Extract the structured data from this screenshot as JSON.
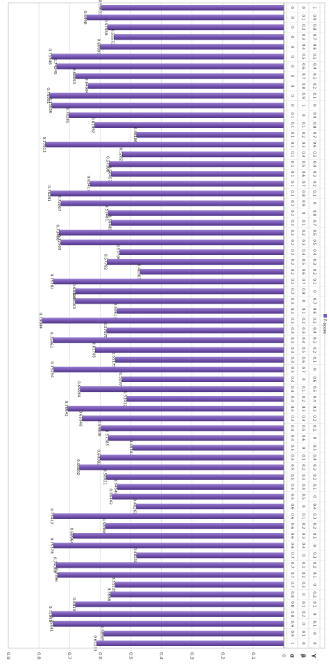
{
  "chart_data": {
    "type": "bar",
    "orientation": "horizontal",
    "rotated_90_degrees": true,
    "title": "",
    "xlabel": "",
    "ylabel": "",
    "ylim": [
      0,
      0.9
    ],
    "y_ticks": [
      "0",
      "0.1",
      "0.2",
      "0.3",
      "0.4",
      "0.5",
      "0.6",
      "0.7",
      "0.8",
      "0.9"
    ],
    "grid": true,
    "legend": {
      "position": "right",
      "entries": [
        "F-score"
      ]
    },
    "bar_color": "#7b5bb5",
    "table_row_labels": [
      "α",
      "β",
      "γ"
    ],
    "series": [
      {
        "name": "F-score",
        "values": [
          0.59633,
          0.6448,
          0.57658,
          0.55573,
          0.60099,
          0.75946,
          0.74249,
          0.68093,
          0.64004,
          0.76561,
          0.75856,
          0.70285,
          0.61892,
          0.48186,
          0.77913,
          0.5282,
          0.57088,
          0.56457,
          0.63417,
          0.76281,
          0.72867,
          0.57481,
          0.56489,
          0.73466,
          0.72909,
          0.53706,
          0.57782,
          0.46903,
          0.75381,
          0.68093,
          0.68163,
          0.54613,
          0.79004,
          0.57875,
          0.75461,
          0.61705,
          0.55175,
          0.75254,
          0.5297,
          0.66584,
          0.51412,
          0.70642,
          0.65946,
          0.59808,
          0.57385,
          0.49507,
          0.60082,
          0.66802,
          0.58021,
          0.54549,
          0.56142,
          0.48261,
          0.75412,
          0.58366,
          0.68964,
          0.75378,
          0.48158,
          0.74388,
          0.7396,
          0.55228,
          0.5666,
          0.6813,
          0.75818,
          0.75441,
          0.58905,
          0.61233
        ]
      }
    ],
    "table_rows": [
      [
        "0",
        "0",
        "1"
      ],
      [
        "0",
        "0.1",
        "0.9"
      ],
      [
        "0",
        "0.2",
        "0.8"
      ],
      [
        "0",
        "0.3",
        "0.7"
      ],
      [
        "0",
        "0.4",
        "0.6"
      ],
      [
        "0",
        "0.5",
        "0.5"
      ],
      [
        "0",
        "0.6",
        "0.4"
      ],
      [
        "0",
        "0.7",
        "0.3"
      ],
      [
        "0",
        "0.8",
        "0.2"
      ],
      [
        "0",
        "0.9",
        "0.1"
      ],
      [
        "0",
        "1",
        "0"
      ],
      [
        "0.1",
        "0",
        "0.9"
      ],
      [
        "0.1",
        "0.1",
        "0.8"
      ],
      [
        "0.1",
        "0.2",
        "0.7"
      ],
      [
        "0.1",
        "0.3",
        "0.6"
      ],
      [
        "0.1",
        "0.4",
        "0.5"
      ],
      [
        "0.1",
        "0.5",
        "0.4"
      ],
      [
        "0.1",
        "0.6",
        "0.3"
      ],
      [
        "0.1",
        "0.7",
        "0.2"
      ],
      [
        "0.1",
        "0.8",
        "0.1"
      ],
      [
        "0.1",
        "0.9",
        "0"
      ],
      [
        "0.2",
        "0",
        "0.8"
      ],
      [
        "0.2",
        "0.1",
        "0.7"
      ],
      [
        "0.2",
        "0.2",
        "0.6"
      ],
      [
        "0.2",
        "0.3",
        "0.5"
      ],
      [
        "0.2",
        "0.4",
        "0.4"
      ],
      [
        "0.2",
        "0.5",
        "0.3"
      ],
      [
        "0.2",
        "0.6",
        "0.2"
      ],
      [
        "0.2",
        "0.7",
        "0.1"
      ],
      [
        "0.2",
        "0.8",
        "0"
      ],
      [
        "0.3",
        "0",
        "0.7"
      ],
      [
        "0.3",
        "0.1",
        "0.6"
      ],
      [
        "0.3",
        "0.2",
        "0.5"
      ],
      [
        "0.3",
        "0.3",
        "0.4"
      ],
      [
        "0.3",
        "0.4",
        "0.3"
      ],
      [
        "0.3",
        "0.5",
        "0.2"
      ],
      [
        "0.3",
        "0.6",
        "0.1"
      ],
      [
        "0.3",
        "0.7",
        "0"
      ],
      [
        "0.4",
        "0",
        "0.6"
      ],
      [
        "0.4",
        "0.1",
        "0.5"
      ],
      [
        "0.4",
        "0.2",
        "0.4"
      ],
      [
        "0.4",
        "0.3",
        "0.3"
      ],
      [
        "0.4",
        "0.4",
        "0.2"
      ],
      [
        "0.4",
        "0.5",
        "0.1"
      ],
      [
        "0.4",
        "0.6",
        "0"
      ],
      [
        "0.5",
        "0",
        "0.5"
      ],
      [
        "0.5",
        "0.1",
        "0.4"
      ],
      [
        "0.5",
        "0.2",
        "0.3"
      ],
      [
        "0.5",
        "0.3",
        "0.2"
      ],
      [
        "0.5",
        "0.4",
        "0.1"
      ],
      [
        "0.5",
        "0.5",
        "0"
      ],
      [
        "0.6",
        "0",
        "0.4"
      ],
      [
        "0.6",
        "0.1",
        "0.3"
      ],
      [
        "0.6",
        "0.2",
        "0.2"
      ],
      [
        "0.6",
        "0.3",
        "0.1"
      ],
      [
        "0.6",
        "0.4",
        "0"
      ],
      [
        "0.7",
        "0",
        "0.3"
      ],
      [
        "0.7",
        "0.1",
        "0.2"
      ],
      [
        "0.7",
        "0.2",
        "0.1"
      ],
      [
        "0.7",
        "0.3",
        "0"
      ],
      [
        "0.8",
        "0",
        "0.2"
      ],
      [
        "0.8",
        "0.1",
        "0.1"
      ],
      [
        "0.8",
        "0.2",
        "0"
      ],
      [
        "0.9",
        "0",
        "0.1"
      ],
      [
        "0.9",
        "0.1",
        "0"
      ],
      [
        "1",
        "0",
        "0"
      ]
    ]
  }
}
